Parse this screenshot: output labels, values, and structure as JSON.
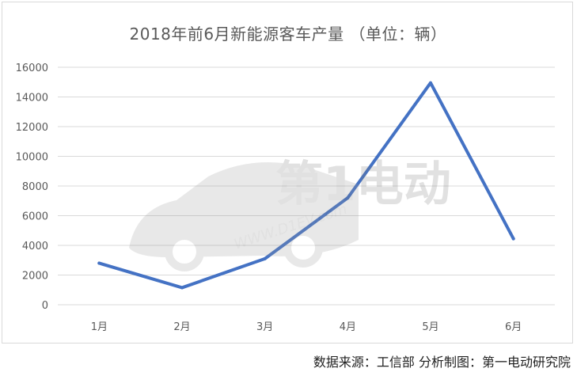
{
  "chart_data": {
    "type": "line",
    "title": "2018年前6月新能源客车产量 （单位：辆）",
    "categories": [
      "1月",
      "2月",
      "3月",
      "4月",
      "5月",
      "6月"
    ],
    "series": [
      {
        "values": [
          2800,
          1150,
          3100,
          7200,
          14950,
          4450
        ]
      }
    ],
    "yticks": [
      "0",
      "2000",
      "4000",
      "6000",
      "8000",
      "10000",
      "12000",
      "14000",
      "16000"
    ],
    "ylim": [
      0,
      16000
    ],
    "grid": true,
    "line_color": "#4472c4"
  },
  "watermark": {
    "brand": "第1电动",
    "url": "WWW.D1EV.com"
  },
  "source": "数据来源：工信部  分析制图：第一电动研究院"
}
